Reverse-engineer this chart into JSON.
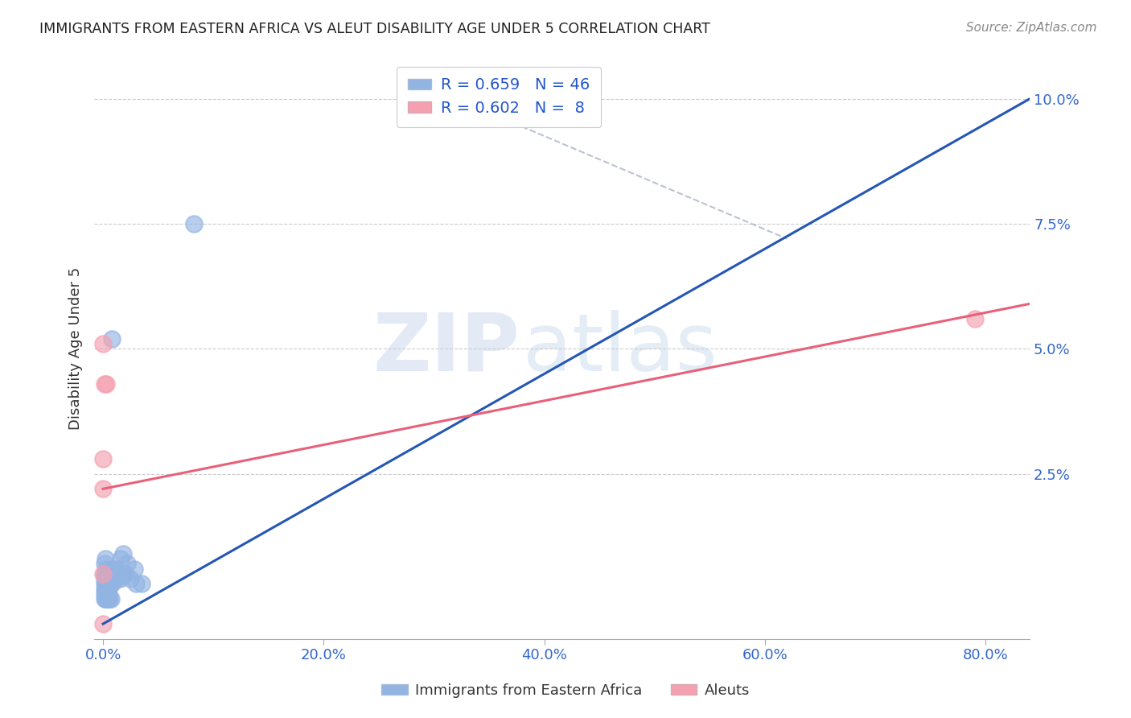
{
  "title": "IMMIGRANTS FROM EASTERN AFRICA VS ALEUT DISABILITY AGE UNDER 5 CORRELATION CHART",
  "source": "Source: ZipAtlas.com",
  "xlabel_ticks": [
    "0.0%",
    "20.0%",
    "40.0%",
    "60.0%",
    "80.0%"
  ],
  "ylabel_ticks": [
    "2.5%",
    "5.0%",
    "7.5%",
    "10.0%"
  ],
  "ylabel_right_ticks": [
    "2.5%",
    "5.0%",
    "7.5%",
    "10.0%"
  ],
  "xlim": [
    -0.008,
    0.84
  ],
  "ylim": [
    -0.008,
    0.108
  ],
  "blue_R": 0.659,
  "blue_N": 46,
  "pink_R": 0.602,
  "pink_N": 8,
  "blue_color": "#92b4e3",
  "pink_color": "#f4a0b0",
  "blue_line_color": "#2457b5",
  "pink_line_color": "#e8607a",
  "watermark_zip": "ZIP",
  "watermark_atlas": "atlas",
  "legend_label_blue": "Immigrants from Eastern Africa",
  "legend_label_pink": "Aleuts",
  "blue_dots": [
    [
      0.001,
      0.005
    ],
    [
      0.002,
      0.008
    ],
    [
      0.001,
      0.007
    ],
    [
      0.003,
      0.006
    ],
    [
      0.002,
      0.005
    ],
    [
      0.001,
      0.004
    ],
    [
      0.003,
      0.003
    ],
    [
      0.002,
      0.003
    ],
    [
      0.001,
      0.003
    ],
    [
      0.004,
      0.003
    ],
    [
      0.001,
      0.002
    ],
    [
      0.002,
      0.002
    ],
    [
      0.003,
      0.002
    ],
    [
      0.001,
      0.001
    ],
    [
      0.002,
      0.001
    ],
    [
      0.003,
      0.001
    ],
    [
      0.004,
      0.001
    ],
    [
      0.005,
      0.001
    ],
    [
      0.001,
      0.0
    ],
    [
      0.002,
      0.0
    ],
    [
      0.003,
      0.0
    ],
    [
      0.004,
      0.0
    ],
    [
      0.005,
      0.0
    ],
    [
      0.006,
      0.0
    ],
    [
      0.007,
      0.0
    ],
    [
      0.006,
      0.003
    ],
    [
      0.007,
      0.003
    ],
    [
      0.008,
      0.003
    ],
    [
      0.01,
      0.004
    ],
    [
      0.012,
      0.004
    ],
    [
      0.015,
      0.004
    ],
    [
      0.013,
      0.005
    ],
    [
      0.018,
      0.005
    ],
    [
      0.02,
      0.005
    ],
    [
      0.025,
      0.004
    ],
    [
      0.03,
      0.003
    ],
    [
      0.035,
      0.003
    ],
    [
      0.028,
      0.006
    ],
    [
      0.022,
      0.007
    ],
    [
      0.016,
      0.008
    ],
    [
      0.018,
      0.009
    ],
    [
      0.012,
      0.006
    ],
    [
      0.009,
      0.006
    ],
    [
      0.006,
      0.005
    ],
    [
      0.082,
      0.075
    ],
    [
      0.008,
      0.052
    ]
  ],
  "pink_dots": [
    [
      0.0,
      0.051
    ],
    [
      0.001,
      0.043
    ],
    [
      0.003,
      0.043
    ],
    [
      0.0,
      0.028
    ],
    [
      0.0,
      0.022
    ],
    [
      0.0,
      0.005
    ],
    [
      0.0,
      -0.005
    ],
    [
      0.79,
      0.056
    ]
  ],
  "blue_line_x": [
    0.0,
    0.84
  ],
  "blue_line_y": [
    -0.005,
    0.1
  ],
  "pink_line_x": [
    0.0,
    0.84
  ],
  "pink_line_y": [
    0.022,
    0.059
  ],
  "dashed_line_x": [
    0.32,
    0.62
  ],
  "dashed_line_y": [
    0.1,
    0.072
  ]
}
